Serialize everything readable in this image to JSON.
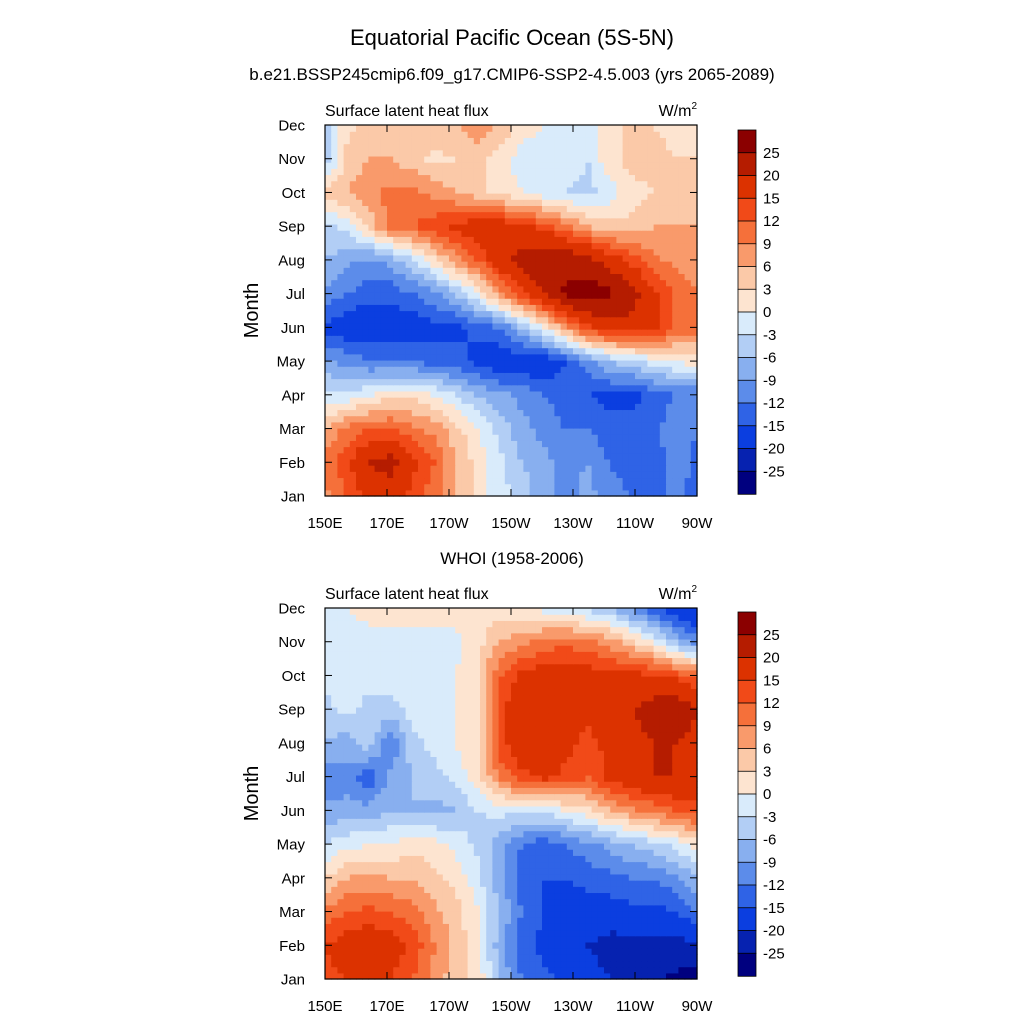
{
  "figure": {
    "title": "Equatorial Pacific Ocean (5S-5N)"
  },
  "chart_data": [
    {
      "type": "heatmap",
      "title": "b.e21.BSSP245cmip6.f09_g17.CMIP6-SSP2-4.5.003 (yrs 2065-2089)",
      "left_label": "Surface latent heat flux",
      "units_base": "W/m",
      "units_exp": "2",
      "ylabel": "Month",
      "x_ticks": [
        "150E",
        "170E",
        "170W",
        "150W",
        "130W",
        "110W",
        "90W"
      ],
      "x_range_deg_east": [
        150,
        270
      ],
      "y_ticks": [
        "Jan",
        "Feb",
        "Mar",
        "Apr",
        "May",
        "Jun",
        "Jul",
        "Aug",
        "Sep",
        "Oct",
        "Nov",
        "Dec"
      ],
      "colorbar_levels": [
        "25",
        "20",
        "15",
        "12",
        "9",
        "6",
        "3",
        "0",
        "-3",
        "-6",
        "-9",
        "-12",
        "-15",
        "-20",
        "-25"
      ],
      "grid": false,
      "values": [
        [
          8,
          12,
          16,
          18,
          14,
          10,
          6,
          2,
          -2,
          -4,
          -8,
          -10,
          -8,
          -10,
          -12,
          -14,
          -10,
          -14
        ],
        [
          10,
          14,
          20,
          22,
          16,
          12,
          6,
          2,
          -2,
          -6,
          -8,
          -10,
          -9,
          -12,
          -14,
          -14,
          -10,
          -13
        ],
        [
          6,
          10,
          12,
          12,
          10,
          8,
          4,
          0,
          -4,
          -8,
          -10,
          -12,
          -12,
          -14,
          -14,
          -13,
          -10,
          -12
        ],
        [
          -3,
          -2,
          0,
          2,
          2,
          0,
          -3,
          -6,
          -8,
          -10,
          -12,
          -14,
          -15,
          -16,
          -16,
          -14,
          -12,
          -12
        ],
        [
          -8,
          -10,
          -12,
          -12,
          -12,
          -14,
          -14,
          -16,
          -18,
          -18,
          -18,
          -15,
          -10,
          -6,
          -4,
          -2,
          0,
          2
        ],
        [
          -16,
          -18,
          -18,
          -18,
          -18,
          -16,
          -16,
          -14,
          -12,
          -6,
          0,
          8,
          14,
          18,
          18,
          16,
          12,
          10
        ],
        [
          -10,
          -12,
          -14,
          -14,
          -12,
          -10,
          -6,
          0,
          8,
          14,
          20,
          26,
          28,
          26,
          22,
          16,
          12,
          10
        ],
        [
          -6,
          -8,
          -10,
          -8,
          -4,
          2,
          8,
          12,
          18,
          22,
          24,
          24,
          22,
          18,
          14,
          10,
          8,
          6
        ],
        [
          -4,
          -2,
          4,
          10,
          12,
          14,
          16,
          18,
          18,
          16,
          14,
          10,
          6,
          4,
          4,
          6,
          6,
          6
        ],
        [
          4,
          6,
          8,
          10,
          10,
          8,
          6,
          4,
          2,
          0,
          -2,
          -3,
          -4,
          -2,
          2,
          3,
          4,
          5
        ],
        [
          -6,
          4,
          6,
          6,
          4,
          2,
          3,
          4,
          2,
          -2,
          -2,
          -1,
          -3,
          2,
          4,
          4,
          3,
          3
        ],
        [
          -4,
          2,
          4,
          6,
          6,
          5,
          6,
          8,
          5,
          2,
          0,
          -2,
          -1,
          2,
          4,
          3,
          2,
          2
        ]
      ]
    },
    {
      "type": "heatmap",
      "title": "WHOI (1958-2006)",
      "left_label": "Surface latent heat flux",
      "units_base": "W/m",
      "units_exp": "2",
      "ylabel": "Month",
      "x_ticks": [
        "150E",
        "170E",
        "170W",
        "150W",
        "130W",
        "110W",
        "90W"
      ],
      "x_range_deg_east": [
        150,
        270
      ],
      "y_ticks": [
        "Jan",
        "Feb",
        "Mar",
        "Apr",
        "May",
        "Jun",
        "Jul",
        "Aug",
        "Sep",
        "Oct",
        "Nov",
        "Dec"
      ],
      "colorbar_levels": [
        "25",
        "20",
        "15",
        "12",
        "9",
        "6",
        "3",
        "0",
        "-3",
        "-6",
        "-9",
        "-12",
        "-15",
        "-20",
        "-25"
      ],
      "grid": false,
      "values": [
        [
          14,
          15,
          16,
          15,
          12,
          8,
          4,
          2,
          -6,
          -12,
          -14,
          -16,
          -18,
          -20,
          -22,
          -24,
          -26,
          -28
        ],
        [
          15,
          17,
          18,
          17,
          14,
          9,
          5,
          1,
          -8,
          -14,
          -16,
          -18,
          -20,
          -22,
          -22,
          -22,
          -22,
          -20
        ],
        [
          10,
          12,
          13,
          12,
          10,
          7,
          4,
          0,
          -6,
          -12,
          -15,
          -16,
          -17,
          -17,
          -16,
          -16,
          -15,
          -12
        ],
        [
          3,
          6,
          7,
          6,
          6,
          4,
          2,
          -2,
          -8,
          -14,
          -15,
          -15,
          -14,
          -13,
          -12,
          -12,
          -10,
          -6
        ],
        [
          -3,
          -1,
          0,
          0,
          2,
          1,
          -1,
          -4,
          -8,
          -12,
          -14,
          -12,
          -10,
          -8,
          -6,
          -4,
          -2,
          2
        ],
        [
          -8,
          -8,
          -8,
          -6,
          -6,
          -7,
          -6,
          -3,
          -2,
          -3,
          -2,
          0,
          2,
          6,
          8,
          10,
          12,
          14
        ],
        [
          -12,
          -10,
          -14,
          -8,
          -6,
          -4,
          -2,
          2,
          10,
          14,
          16,
          14,
          12,
          16,
          18,
          20,
          20,
          18
        ],
        [
          -6,
          -8,
          -4,
          -12,
          -4,
          -2,
          0,
          3,
          14,
          18,
          20,
          16,
          14,
          16,
          18,
          20,
          20,
          18
        ],
        [
          -4,
          -2,
          -4,
          -4,
          -2,
          -1,
          0,
          3,
          14,
          18,
          20,
          18,
          16,
          18,
          20,
          22,
          24,
          20
        ],
        [
          -2,
          -1,
          -2,
          -2,
          -2,
          -1,
          0,
          3,
          12,
          16,
          18,
          18,
          17,
          16,
          16,
          16,
          14,
          12
        ],
        [
          -2,
          -2,
          -2,
          -2,
          -2,
          -2,
          -1,
          2,
          6,
          8,
          10,
          11,
          10,
          8,
          4,
          0,
          -6,
          -10
        ],
        [
          -2,
          0,
          2,
          3,
          3,
          2,
          2,
          2,
          1,
          0,
          -1,
          -2,
          -4,
          -6,
          -10,
          -14,
          -18,
          -20
        ]
      ]
    }
  ],
  "colors": {
    "level_fills": [
      "#8b0000",
      "#b51c00",
      "#dc3200",
      "#f14a18",
      "#f5703a",
      "#f99a6b",
      "#fbc9a8",
      "#fde4d0",
      "#d9ebfb",
      "#b2cef5",
      "#88afef",
      "#5c8cea",
      "#2f63e6",
      "#0b3ee0",
      "#0622b0",
      "#00007f"
    ],
    "axis": "#000000"
  }
}
